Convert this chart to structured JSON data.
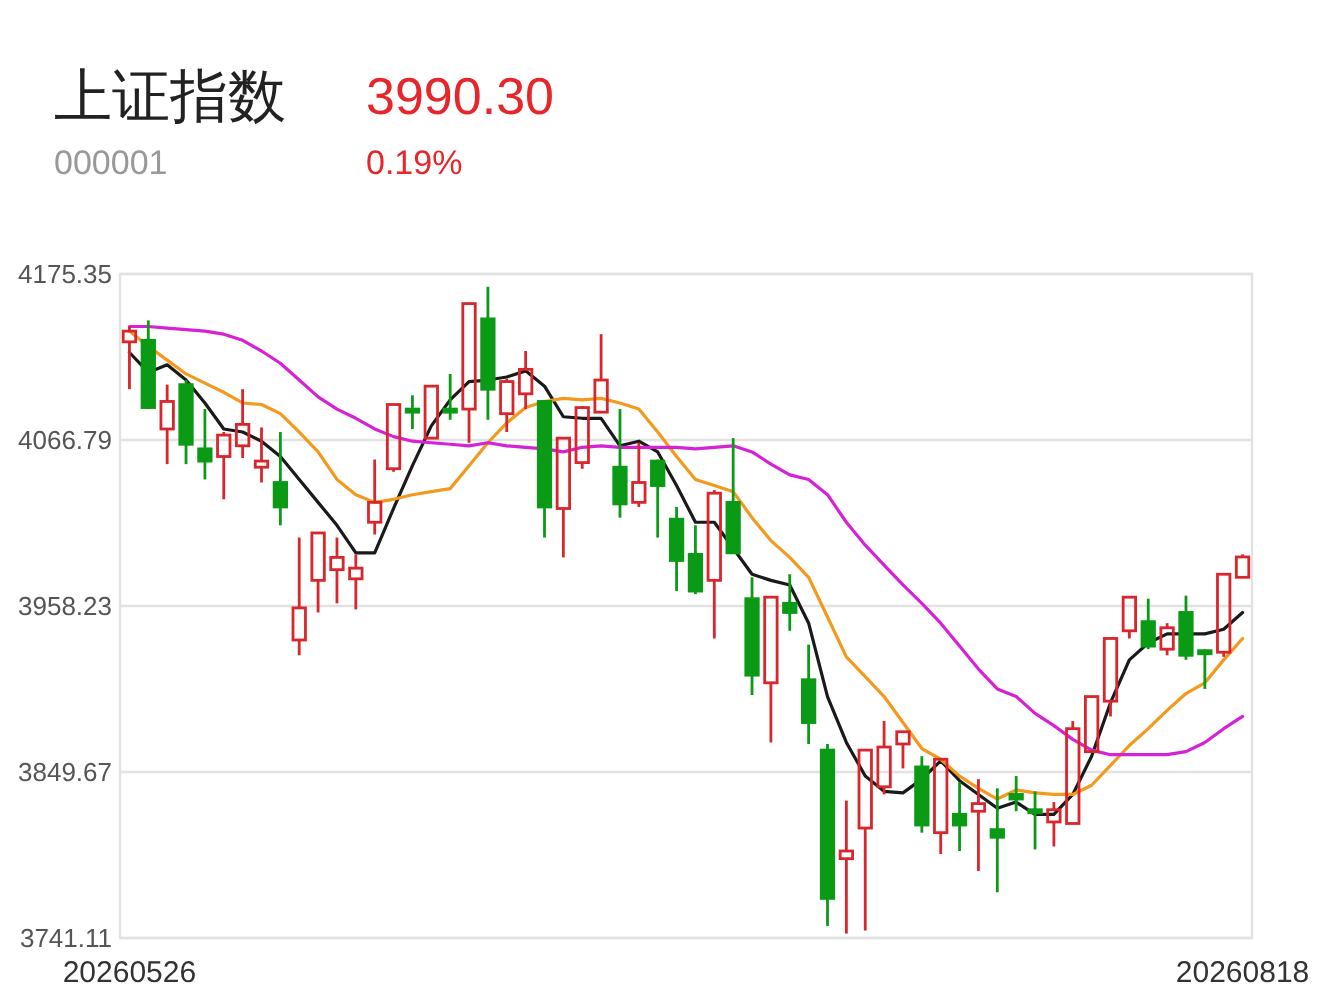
{
  "chart_data": {
    "type": "candlestick",
    "title": "上证指数",
    "subtitle": "000001",
    "annotations": [
      "3990.30",
      "0.19%"
    ],
    "categories": [
      "20260526",
      null,
      null,
      null,
      null,
      null,
      null,
      null,
      null,
      null,
      null,
      null,
      null,
      null,
      null,
      null,
      null,
      null,
      null,
      null,
      null,
      null,
      null,
      null,
      null,
      null,
      null,
      null,
      null,
      null,
      null,
      null,
      null,
      null,
      null,
      null,
      null,
      null,
      null,
      null,
      null,
      null,
      null,
      null,
      null,
      null,
      null,
      null,
      null,
      null,
      null,
      null,
      null,
      null,
      null,
      null,
      null,
      null,
      null,
      "20260818"
    ],
    "ohlc": [
      [
        4131,
        4141,
        4100,
        4138
      ],
      [
        4132,
        4145,
        4087,
        4088
      ],
      [
        4074,
        4103,
        4051,
        4092
      ],
      [
        4103,
        4106,
        4051,
        4064
      ],
      [
        4061,
        4087,
        4041,
        4053
      ],
      [
        4056,
        4072,
        4028,
        4070
      ],
      [
        4063,
        4100,
        4055,
        4077
      ],
      [
        4049,
        4075,
        4039,
        4053
      ],
      [
        4039,
        4072,
        4011,
        4023
      ],
      [
        3936,
        4003,
        3926,
        3957
      ],
      [
        3975,
        4006,
        3954,
        4006
      ],
      [
        3982,
        4003,
        3960,
        3990
      ],
      [
        3976,
        3992,
        3956,
        3983
      ],
      [
        4013,
        4054,
        4005,
        4026
      ],
      [
        4048,
        4090,
        4046,
        4090
      ],
      [
        4087,
        4096,
        4074,
        4085
      ],
      [
        4068,
        4102,
        4068,
        4102
      ],
      [
        4087,
        4110,
        4080,
        4085
      ],
      [
        4087,
        4156,
        4065,
        4156
      ],
      [
        4146,
        4167,
        4080,
        4100
      ],
      [
        4084,
        4107,
        4072,
        4105
      ],
      [
        4097,
        4125,
        4087,
        4113
      ],
      [
        4092,
        4093,
        4003,
        4023
      ],
      [
        4022,
        4068,
        3990,
        4068
      ],
      [
        4052,
        4089,
        4048,
        4088
      ],
      [
        4085,
        4136,
        4085,
        4106
      ],
      [
        4049,
        4087,
        4016,
        4025
      ],
      [
        4026,
        4065,
        4023,
        4039
      ],
      [
        4053,
        4054,
        4003,
        4037
      ],
      [
        4015,
        4023,
        3968,
        3988
      ],
      [
        3992,
        4011,
        3966,
        3968
      ],
      [
        3975,
        4034,
        3937,
        4032
      ],
      [
        4026,
        4068,
        3993,
        3993
      ],
      [
        3963,
        3977,
        3900,
        3913
      ],
      [
        3908,
        3964,
        3869,
        3964
      ],
      [
        3960,
        3979,
        3942,
        3954
      ],
      [
        3910,
        3933,
        3868,
        3882
      ],
      [
        3864,
        3868,
        3749,
        3767
      ],
      [
        3793,
        3831,
        3744,
        3798
      ],
      [
        3813,
        3864,
        3746,
        3864
      ],
      [
        3840,
        3883,
        3835,
        3866
      ],
      [
        3868,
        3876,
        3852,
        3876
      ],
      [
        3853,
        3860,
        3810,
        3815
      ],
      [
        3810,
        3858,
        3796,
        3858
      ],
      [
        3822,
        3843,
        3798,
        3815
      ],
      [
        3824,
        3845,
        3785,
        3829
      ],
      [
        3812,
        3839,
        3771,
        3807
      ],
      [
        3835,
        3847,
        3824,
        3832
      ],
      [
        3825,
        3837,
        3799,
        3823
      ],
      [
        3817,
        3830,
        3801,
        3825
      ],
      [
        3816,
        3883,
        3816,
        3878
      ],
      [
        3863,
        3899,
        3863,
        3899
      ],
      [
        3896,
        3937,
        3886,
        3937
      ],
      [
        3942,
        3964,
        3937,
        3964
      ],
      [
        3948,
        3963,
        3930,
        3932
      ],
      [
        3930,
        3947,
        3926,
        3944
      ],
      [
        3954,
        3965,
        3923,
        3926
      ],
      [
        3929,
        3930,
        3904,
        3927
      ],
      [
        3928,
        3979,
        3925,
        3979
      ],
      [
        3977,
        3992,
        3977,
        3990.3
      ]
    ],
    "series": [
      {
        "type": "line",
        "color": "#1a1a1a",
        "values": [
          4124,
          4111,
          4116,
          4106,
          4091,
          4074,
          4072,
          4066,
          4056,
          4041,
          4026,
          4011,
          3993,
          3993,
          4022,
          4050,
          4076,
          4093,
          4105,
          4106,
          4108,
          4112,
          4102,
          4082,
          4081,
          4081,
          4063,
          4066,
          4059,
          4037,
          4013,
          4013,
          null,
          3979,
          3975,
          3972,
          3947,
          3899,
          3869,
          3847,
          3837,
          3836,
          3845,
          3857,
          3844,
          3835,
          3826,
          3830,
          3822,
          3822,
          3835,
          3860,
          3895,
          3923,
          3934,
          3940,
          3940,
          3940,
          3943,
          3954
        ]
      },
      {
        "type": "line",
        "color": "#f39a1e",
        "values": [
          4138,
          4128,
          4119,
          4110,
          4104,
          4098,
          4091,
          4090,
          4084,
          4072,
          4059,
          4041,
          4031,
          4026,
          4028,
          4031,
          4033,
          4035,
          4050,
          4065,
          4078,
          4088,
          4092,
          4094,
          4093,
          4094,
          4091,
          4087,
          4072,
          4056,
          4041,
          4037,
          4033,
          4016,
          4001,
          3990,
          3977,
          3951,
          3925,
          3912,
          3899,
          3882,
          3865,
          3858,
          3847,
          3839,
          3832,
          3838,
          3836,
          3835,
          3835,
          3841,
          3854,
          3867,
          3878,
          3890,
          3901,
          3908,
          3923,
          3937
        ]
      },
      {
        "type": "line",
        "color": "#d622d6",
        "values": [
          4141,
          4141,
          4140,
          4139,
          4138,
          4136,
          4132,
          4125,
          4117,
          4106,
          4095,
          4087,
          4081,
          4074,
          4069,
          4066,
          4065,
          4064,
          4063,
          4065,
          4063,
          4062,
          4061,
          4059,
          4062,
          4063,
          4062,
          4062,
          4062,
          4062,
          4061,
          4062,
          4063,
          4059,
          4051,
          4044,
          4041,
          4031,
          4013,
          3998,
          3985,
          3972,
          3960,
          3947,
          3932,
          3917,
          3904,
          3899,
          3888,
          3880,
          3871,
          3864,
          3861,
          3861,
          3861,
          3861,
          3863,
          3869,
          3878,
          3886
        ]
      }
    ],
    "ylim": [
      3741.11,
      4175.35
    ],
    "yticks": [
      4175.35,
      4066.79,
      3958.23,
      3849.67,
      3741.11
    ],
    "grid": "y"
  }
}
